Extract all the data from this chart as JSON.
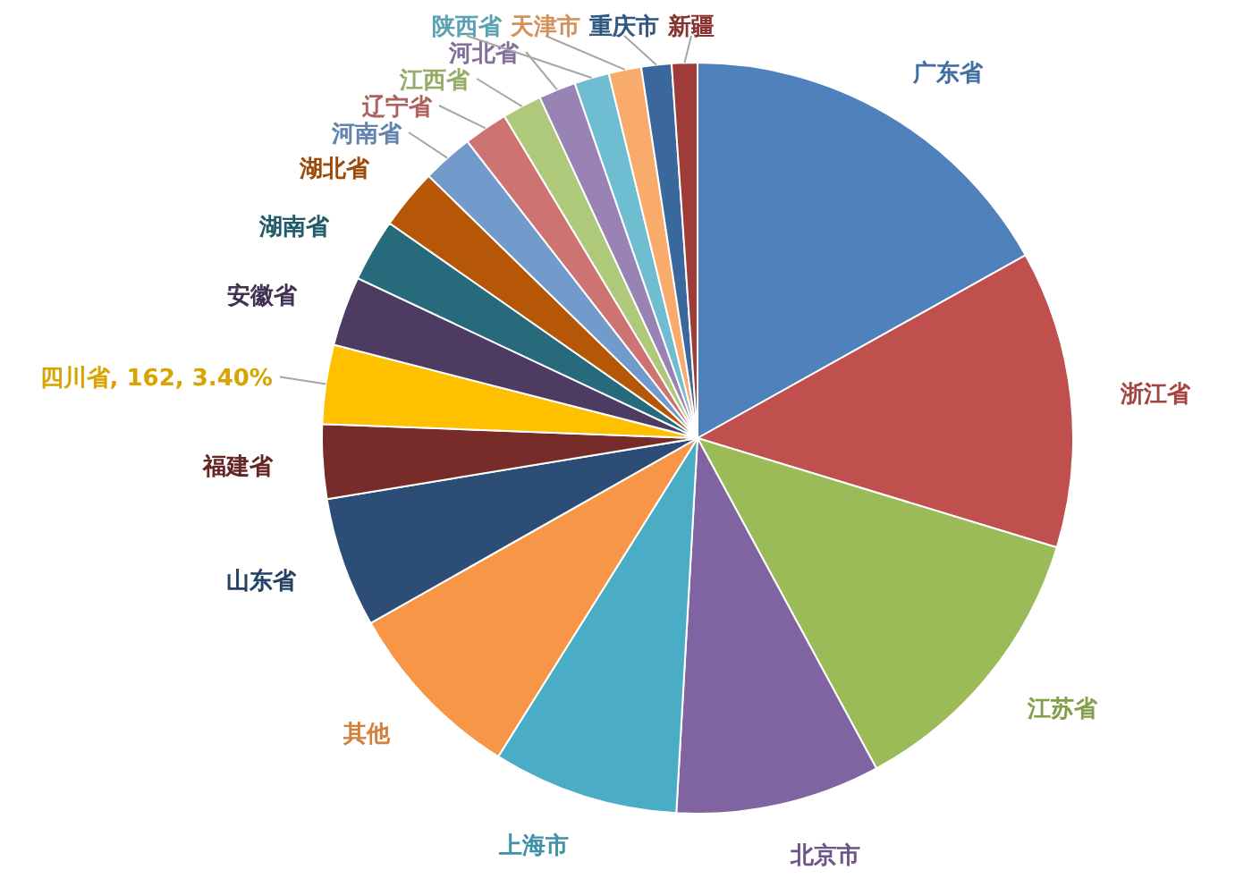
{
  "chart_data": {
    "type": "pie",
    "categories": [
      "广东省",
      "浙江省",
      "江苏省",
      "北京市",
      "上海市",
      "其他",
      "山东省",
      "福建省",
      "四川省",
      "安徽省",
      "湖南省",
      "湖北省",
      "河南省",
      "辽宁省",
      "江西省",
      "河北省",
      "陕西省",
      "天津市",
      "重庆市",
      "新疆"
    ],
    "values": [
      16.9,
      12.8,
      12.4,
      8.8,
      8.0,
      7.9,
      5.6,
      3.2,
      3.4,
      3.0,
      2.7,
      2.6,
      2.2,
      1.9,
      1.7,
      1.6,
      1.5,
      1.4,
      1.3,
      1.1
    ],
    "colors": [
      "#4f81bd",
      "#c0504d",
      "#9bbb59",
      "#8064a2",
      "#4bacc6",
      "#f79646",
      "#2c4d75",
      "#772c2a",
      "#ffc000",
      "#4d3b62",
      "#276a7c",
      "#b65708",
      "#729aca",
      "#cd7371",
      "#afc97a",
      "#9983b5",
      "#6fbdd1",
      "#f9ab6b",
      "#3a679c",
      "#9f3b38"
    ],
    "value_labels": [
      null,
      null,
      null,
      null,
      null,
      null,
      null,
      null,
      "162, 3.40%",
      null,
      null,
      null,
      null,
      null,
      null,
      null,
      null,
      null,
      null,
      null
    ]
  }
}
